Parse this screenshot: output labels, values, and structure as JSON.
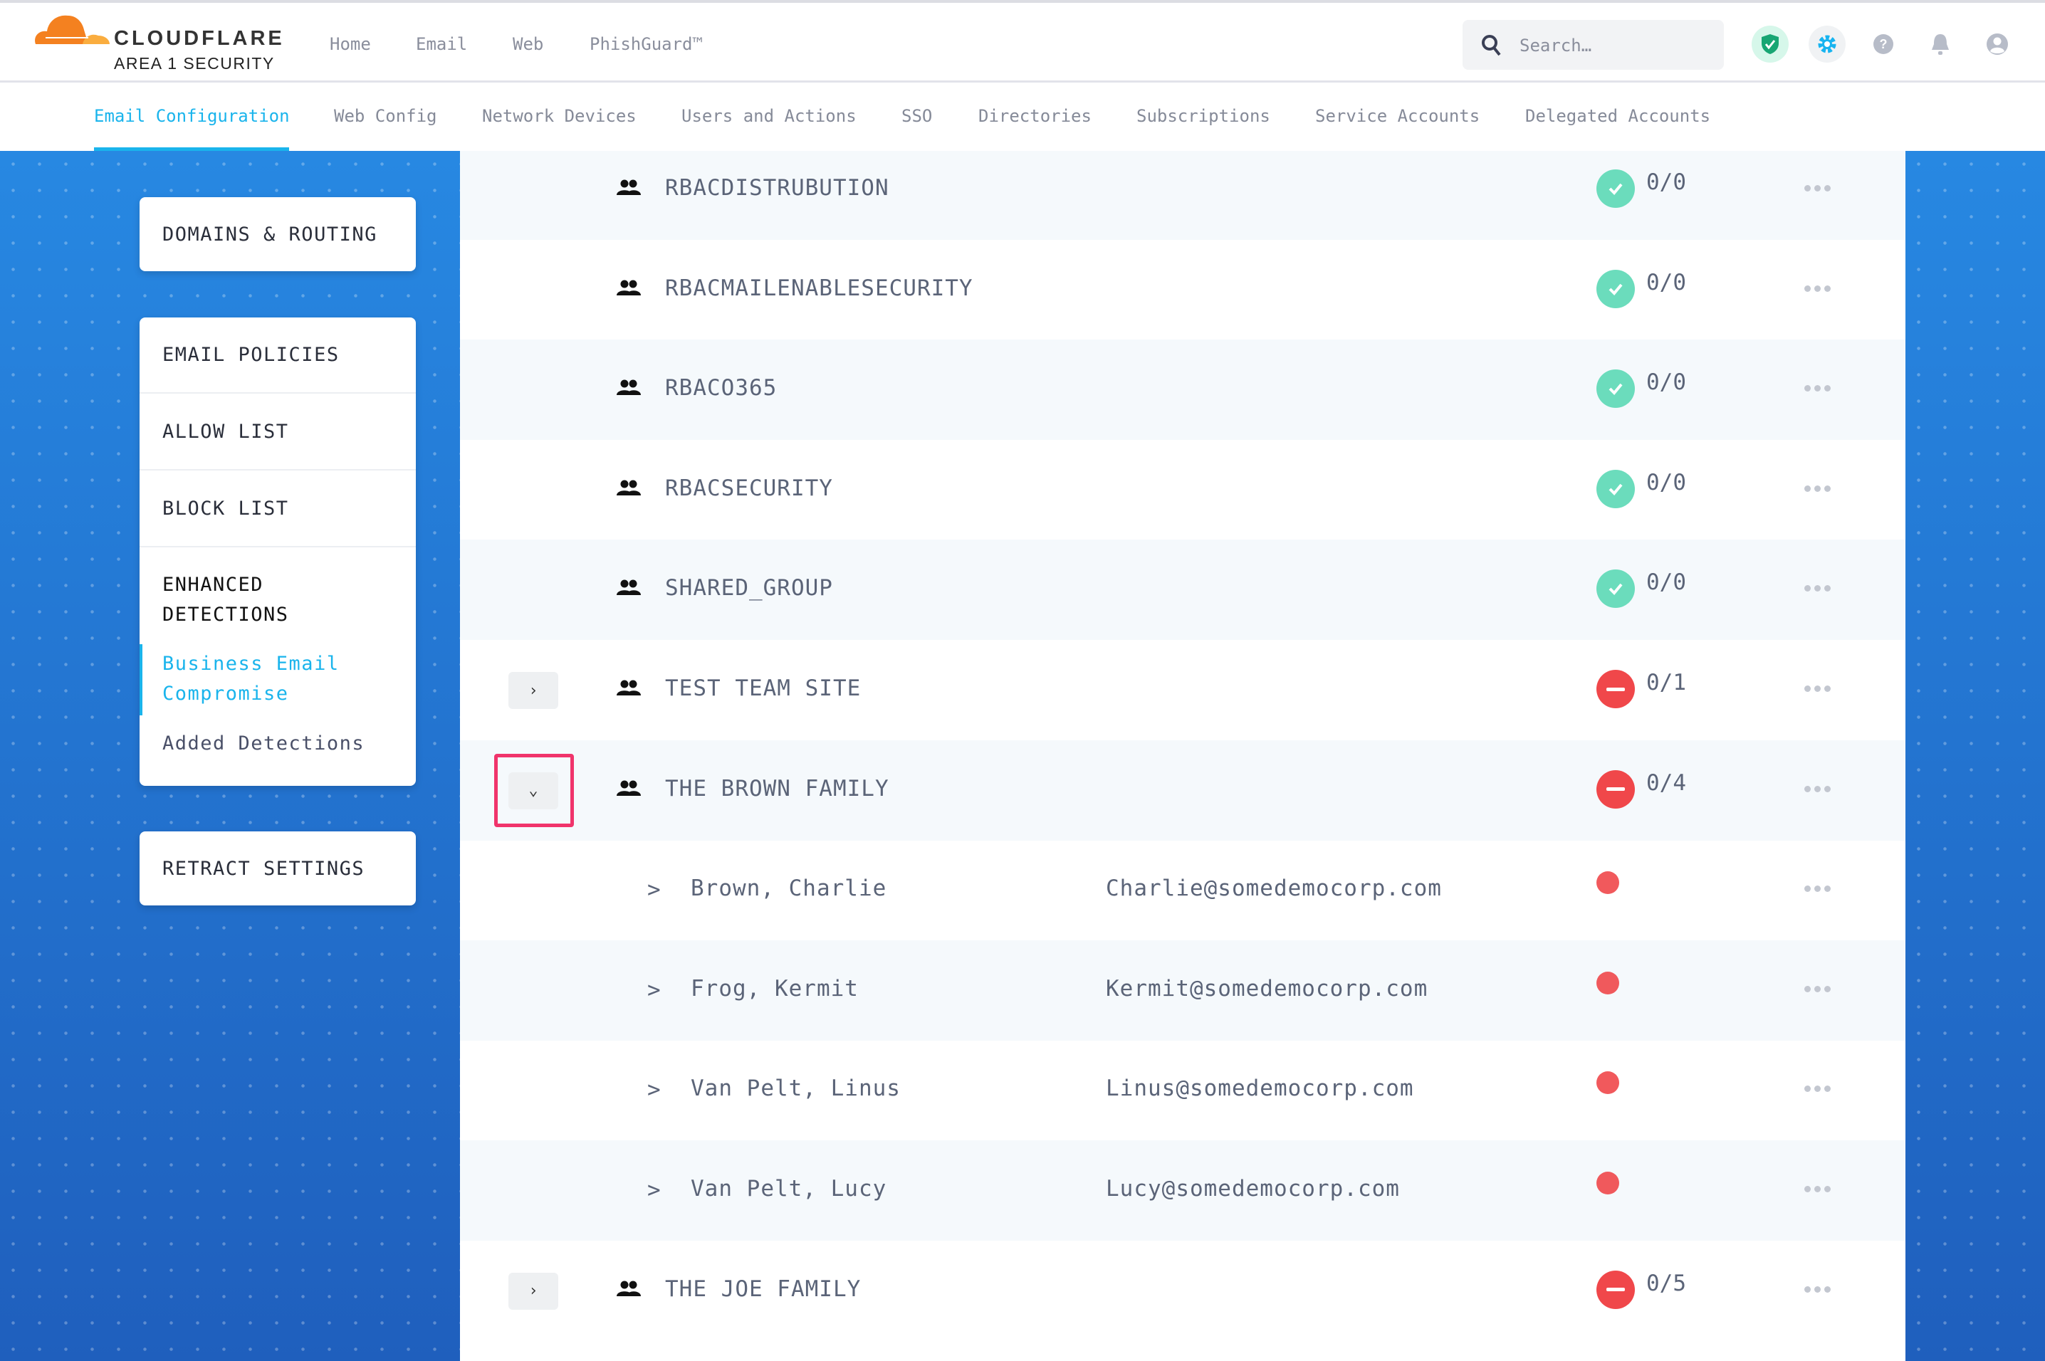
{
  "brand": {
    "name": "CLOUDFLARE",
    "sub": "AREA 1 SECURITY"
  },
  "nav": [
    "Home",
    "Email",
    "Web",
    "PhishGuard™"
  ],
  "search": {
    "placeholder": "Search…"
  },
  "tabs": [
    "Email Configuration",
    "Web Config",
    "Network Devices",
    "Users and Actions",
    "SSO",
    "Directories",
    "Subscriptions",
    "Service Accounts",
    "Delegated Accounts"
  ],
  "active_tab": "Email Configuration",
  "sidebar": {
    "domains": "DOMAINS & ROUTING",
    "policies": [
      "EMAIL POLICIES",
      "ALLOW LIST",
      "BLOCK LIST"
    ],
    "enhanced": "ENHANCED DETECTIONS",
    "bec": "Business Email Compromise",
    "added": "Added Detections",
    "retract": "RETRACT SETTINGS"
  },
  "colors": {
    "accent": "#1ab4ec",
    "ok": "#6bdcbc",
    "error": "#f0474a",
    "highlight": "#f0346b"
  },
  "rows": [
    {
      "type": "group",
      "name": "RBACDISTRUBUTION",
      "status": "ok",
      "count": "0/0"
    },
    {
      "type": "group",
      "name": "RBACMAILENABLESECURITY",
      "status": "ok",
      "count": "0/0"
    },
    {
      "type": "group",
      "name": "RBACO365",
      "status": "ok",
      "count": "0/0"
    },
    {
      "type": "group",
      "name": "RBACSECURITY",
      "status": "ok",
      "count": "0/0"
    },
    {
      "type": "group",
      "name": "SHARED_GROUP",
      "status": "ok",
      "count": "0/0"
    },
    {
      "type": "group",
      "name": "TEST TEAM SITE",
      "status": "error",
      "count": "0/1",
      "expand": "collapsed"
    },
    {
      "type": "group",
      "name": "THE BROWN FAMILY",
      "status": "error",
      "count": "0/4",
      "expand": "expanded"
    },
    {
      "type": "member",
      "name": "Brown, Charlie",
      "email": "Charlie@somedemocorp.com",
      "status": "error"
    },
    {
      "type": "member",
      "name": "Frog, Kermit",
      "email": "Kermit@somedemocorp.com",
      "status": "error"
    },
    {
      "type": "member",
      "name": "Van Pelt, Linus",
      "email": "Linus@somedemocorp.com",
      "status": "error"
    },
    {
      "type": "member",
      "name": "Van Pelt, Lucy",
      "email": "Lucy@somedemocorp.com",
      "status": "error"
    },
    {
      "type": "group",
      "name": "THE JOE FAMILY",
      "status": "error",
      "count": "0/5",
      "expand": "collapsed"
    }
  ]
}
